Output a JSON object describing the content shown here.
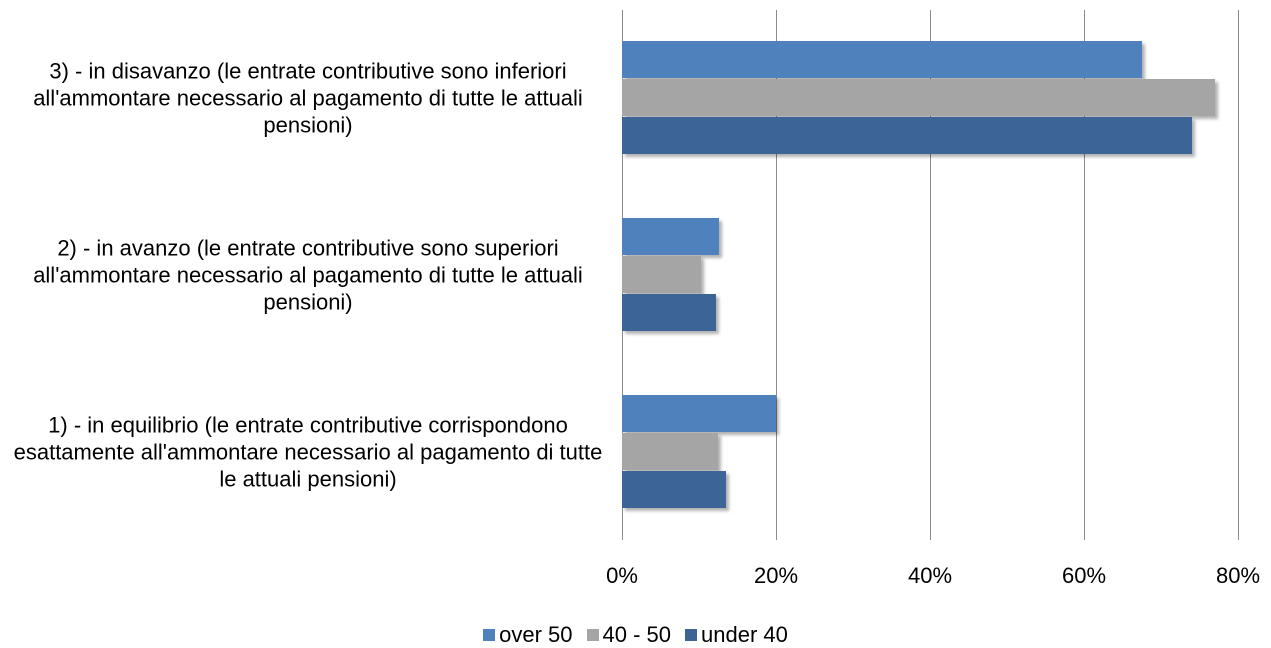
{
  "chart_data": {
    "type": "bar",
    "orientation": "horizontal",
    "categories": [
      "1) - in equilibrio (le entrate contributive corrispondono esattamente all'ammontare necessario al pagamento di tutte le attuali pensioni)",
      "2) - in avanzo (le entrate contributive sono superiori all'ammontare necessario al pagamento di tutte le attuali pensioni)",
      "3) - in disavanzo (le entrate contributive sono inferiori all'ammontare necessario al pagamento di tutte le attuali pensioni)"
    ],
    "series": [
      {
        "name": "over 50",
        "color": "#4f81bd",
        "values": [
          20,
          12.6,
          67.5
        ]
      },
      {
        "name": "40 - 50",
        "color": "#a5a5a5",
        "values": [
          12.5,
          10.3,
          77
        ]
      },
      {
        "name": "under 40",
        "color": "#3c6496",
        "values": [
          13.5,
          12.2,
          74
        ]
      }
    ],
    "xlim": [
      0,
      80
    ],
    "xticks": [
      {
        "value": 0,
        "label": "0%"
      },
      {
        "value": 20,
        "label": "20%"
      },
      {
        "value": 40,
        "label": "40%"
      },
      {
        "value": 60,
        "label": "60%"
      },
      {
        "value": 80,
        "label": "80%"
      }
    ],
    "grid": true,
    "legend": "bottom"
  }
}
